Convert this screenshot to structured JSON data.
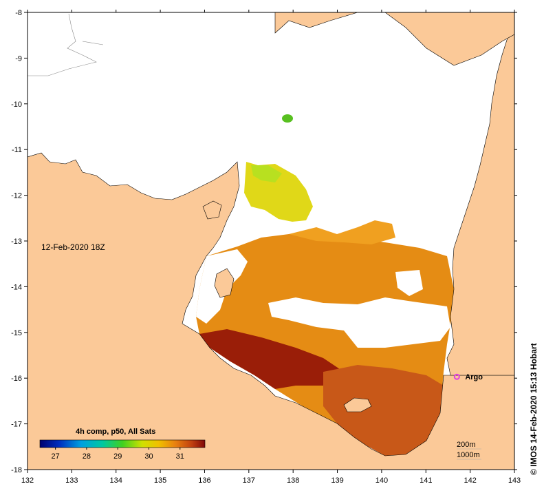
{
  "map": {
    "timestamp_label": "12-Feb-2020 18Z",
    "credit": "© IMOS 14-Feb-2020 15:13 Hobart",
    "x_ticks": [
      "132",
      "133",
      "134",
      "135",
      "136",
      "137",
      "138",
      "139",
      "140",
      "141",
      "142",
      "143"
    ],
    "y_ticks": [
      "-8",
      "-9",
      "-10",
      "-11",
      "-12",
      "-13",
      "-14",
      "-15",
      "-16",
      "-17",
      "-18"
    ],
    "argo": {
      "label": "Argo",
      "lon": 141.7,
      "lat": -15.97,
      "color": "#e040e0"
    },
    "contour_legend": {
      "line1": "200m",
      "line2": "1000m"
    },
    "colorbar": {
      "title": "4h comp, p50, All Sats",
      "ticks": [
        "27",
        "28",
        "29",
        "30",
        "31"
      ],
      "tick_values": [
        27,
        28,
        29,
        30,
        31
      ],
      "range": [
        26.5,
        31.8
      ]
    },
    "colors": {
      "land": "#fbc998",
      "no_data": "#ffffff",
      "sst_30": "#f0d020",
      "sst_31": "#e08a10",
      "sst_warm": "#c05010",
      "sst_hot": "#8a1008"
    }
  }
}
